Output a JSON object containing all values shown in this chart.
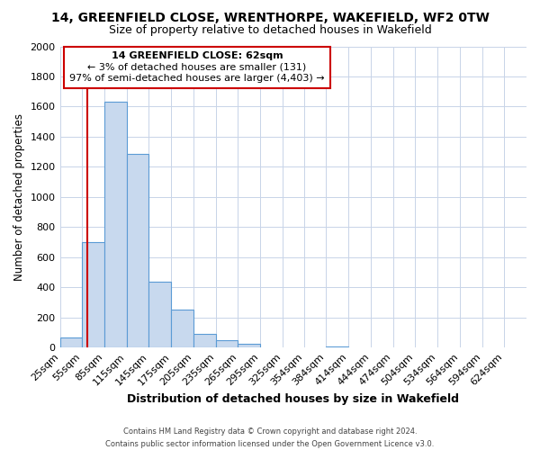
{
  "title": "14, GREENFIELD CLOSE, WRENTHORPE, WAKEFIELD, WF2 0TW",
  "subtitle": "Size of property relative to detached houses in Wakefield",
  "xlabel": "Distribution of detached houses by size in Wakefield",
  "ylabel": "Number of detached properties",
  "bar_color": "#c8d9ee",
  "bar_edge_color": "#5b9bd5",
  "grid_color": "#c8d4e8",
  "annotation_box_edge": "#cc0000",
  "red_line_color": "#cc0000",
  "footer_text": "Contains HM Land Registry data © Crown copyright and database right 2024.\nContains public sector information licensed under the Open Government Licence v3.0.",
  "annotation_line1": "14 GREENFIELD CLOSE: 62sqm",
  "annotation_line2": "← 3% of detached houses are smaller (131)",
  "annotation_line3": "97% of semi-detached houses are larger (4,403) →",
  "red_line_x": 62,
  "categories": [
    "25sqm",
    "55sqm",
    "85sqm",
    "115sqm",
    "145sqm",
    "175sqm",
    "205sqm",
    "235sqm",
    "265sqm",
    "295sqm",
    "325sqm",
    "354sqm",
    "384sqm",
    "414sqm",
    "444sqm",
    "474sqm",
    "504sqm",
    "534sqm",
    "564sqm",
    "594sqm",
    "624sqm"
  ],
  "bin_left_edges": [
    25,
    55,
    85,
    115,
    145,
    175,
    205,
    235,
    265,
    295,
    325,
    354,
    384,
    414,
    444,
    474,
    504,
    534,
    564,
    594,
    624
  ],
  "bin_width": 30,
  "values": [
    65,
    700,
    1635,
    1285,
    440,
    255,
    90,
    50,
    25,
    0,
    0,
    0,
    10,
    0,
    0,
    0,
    0,
    0,
    0,
    0,
    0
  ],
  "ylim": [
    0,
    2000
  ],
  "yticks": [
    0,
    200,
    400,
    600,
    800,
    1000,
    1200,
    1400,
    1600,
    1800,
    2000
  ],
  "background_color": "#ffffff"
}
